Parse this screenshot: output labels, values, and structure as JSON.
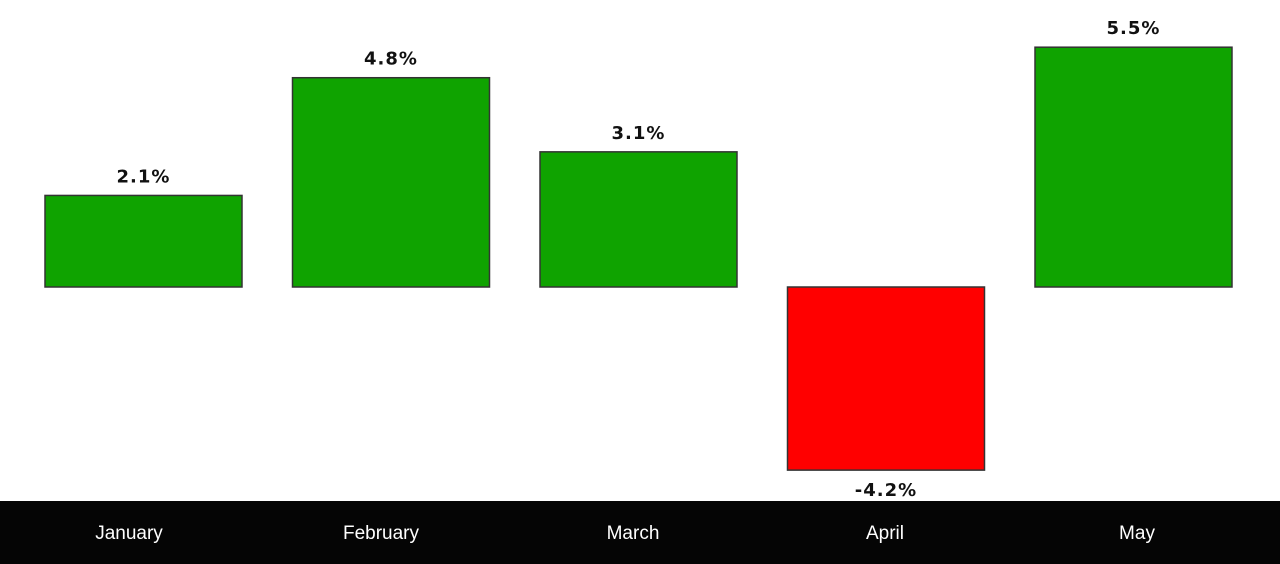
{
  "chart_data": {
    "type": "bar",
    "categories": [
      "January",
      "February",
      "March",
      "April",
      "May"
    ],
    "values": [
      2.1,
      4.8,
      3.1,
      -4.2,
      5.5
    ],
    "value_labels": [
      "2.1%",
      "4.8%",
      "3.1%",
      "-4.2%",
      "5.5%"
    ],
    "positive_color": "#0fa300",
    "negative_color": "#ff0000"
  }
}
